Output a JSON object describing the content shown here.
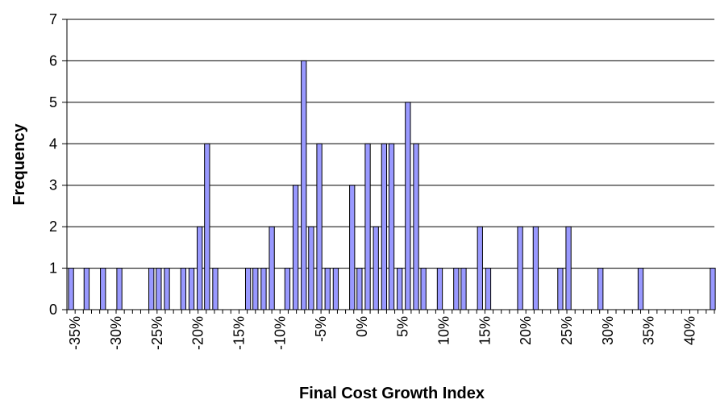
{
  "chart_data": {
    "type": "bar",
    "title": "",
    "xlabel": "Final Cost Growth Index",
    "ylabel": "Frequency",
    "ylim": [
      0,
      7
    ],
    "xlim": [
      -0.36,
      0.43
    ],
    "grid": "horizontal",
    "legend": "none",
    "bar_color": "#9999ff",
    "bar_edge_color": "#000000",
    "bin_width": 0.01,
    "y_ticks": [
      "0",
      "1",
      "2",
      "3",
      "4",
      "5",
      "6",
      "7"
    ],
    "x_ticks": [
      "-35%",
      "-30%",
      "-25%",
      "-20%",
      "-15%",
      "-10%",
      "-5%",
      "0%",
      "5%",
      "10%",
      "15%",
      "20%",
      "25%",
      "30%",
      "35%",
      "40%"
    ],
    "x_tick_values": [
      -0.35,
      -0.3,
      -0.25,
      -0.2,
      -0.15,
      -0.1,
      -0.05,
      0.0,
      0.05,
      0.1,
      0.15,
      0.2,
      0.25,
      0.3,
      0.35,
      0.4
    ],
    "points": [
      {
        "x": -0.355,
        "y": 1
      },
      {
        "x": -0.336,
        "y": 1
      },
      {
        "x": -0.316,
        "y": 1
      },
      {
        "x": -0.296,
        "y": 1
      },
      {
        "x": -0.257,
        "y": 1
      },
      {
        "x": -0.248,
        "y": 1
      },
      {
        "x": -0.238,
        "y": 1
      },
      {
        "x": -0.218,
        "y": 1
      },
      {
        "x": -0.208,
        "y": 1
      },
      {
        "x": -0.198,
        "y": 2
      },
      {
        "x": -0.189,
        "y": 4
      },
      {
        "x": -0.179,
        "y": 1
      },
      {
        "x": -0.139,
        "y": 1
      },
      {
        "x": -0.13,
        "y": 1
      },
      {
        "x": -0.12,
        "y": 1
      },
      {
        "x": -0.11,
        "y": 2
      },
      {
        "x": -0.091,
        "y": 1
      },
      {
        "x": -0.081,
        "y": 3
      },
      {
        "x": -0.071,
        "y": 6
      },
      {
        "x": -0.062,
        "y": 2
      },
      {
        "x": -0.052,
        "y": 4
      },
      {
        "x": -0.042,
        "y": 1
      },
      {
        "x": -0.032,
        "y": 1
      },
      {
        "x": -0.012,
        "y": 3
      },
      {
        "x": -0.003,
        "y": 1
      },
      {
        "x": 0.007,
        "y": 4
      },
      {
        "x": 0.017,
        "y": 2
      },
      {
        "x": 0.027,
        "y": 4
      },
      {
        "x": 0.036,
        "y": 4
      },
      {
        "x": 0.046,
        "y": 1
      },
      {
        "x": 0.056,
        "y": 5
      },
      {
        "x": 0.066,
        "y": 4
      },
      {
        "x": 0.075,
        "y": 1
      },
      {
        "x": 0.095,
        "y": 1
      },
      {
        "x": 0.115,
        "y": 1
      },
      {
        "x": 0.124,
        "y": 1
      },
      {
        "x": 0.144,
        "y": 2
      },
      {
        "x": 0.154,
        "y": 1
      },
      {
        "x": 0.193,
        "y": 2
      },
      {
        "x": 0.212,
        "y": 2
      },
      {
        "x": 0.242,
        "y": 1
      },
      {
        "x": 0.252,
        "y": 2
      },
      {
        "x": 0.291,
        "y": 1
      },
      {
        "x": 0.34,
        "y": 1
      },
      {
        "x": 0.428,
        "y": 1
      }
    ]
  }
}
